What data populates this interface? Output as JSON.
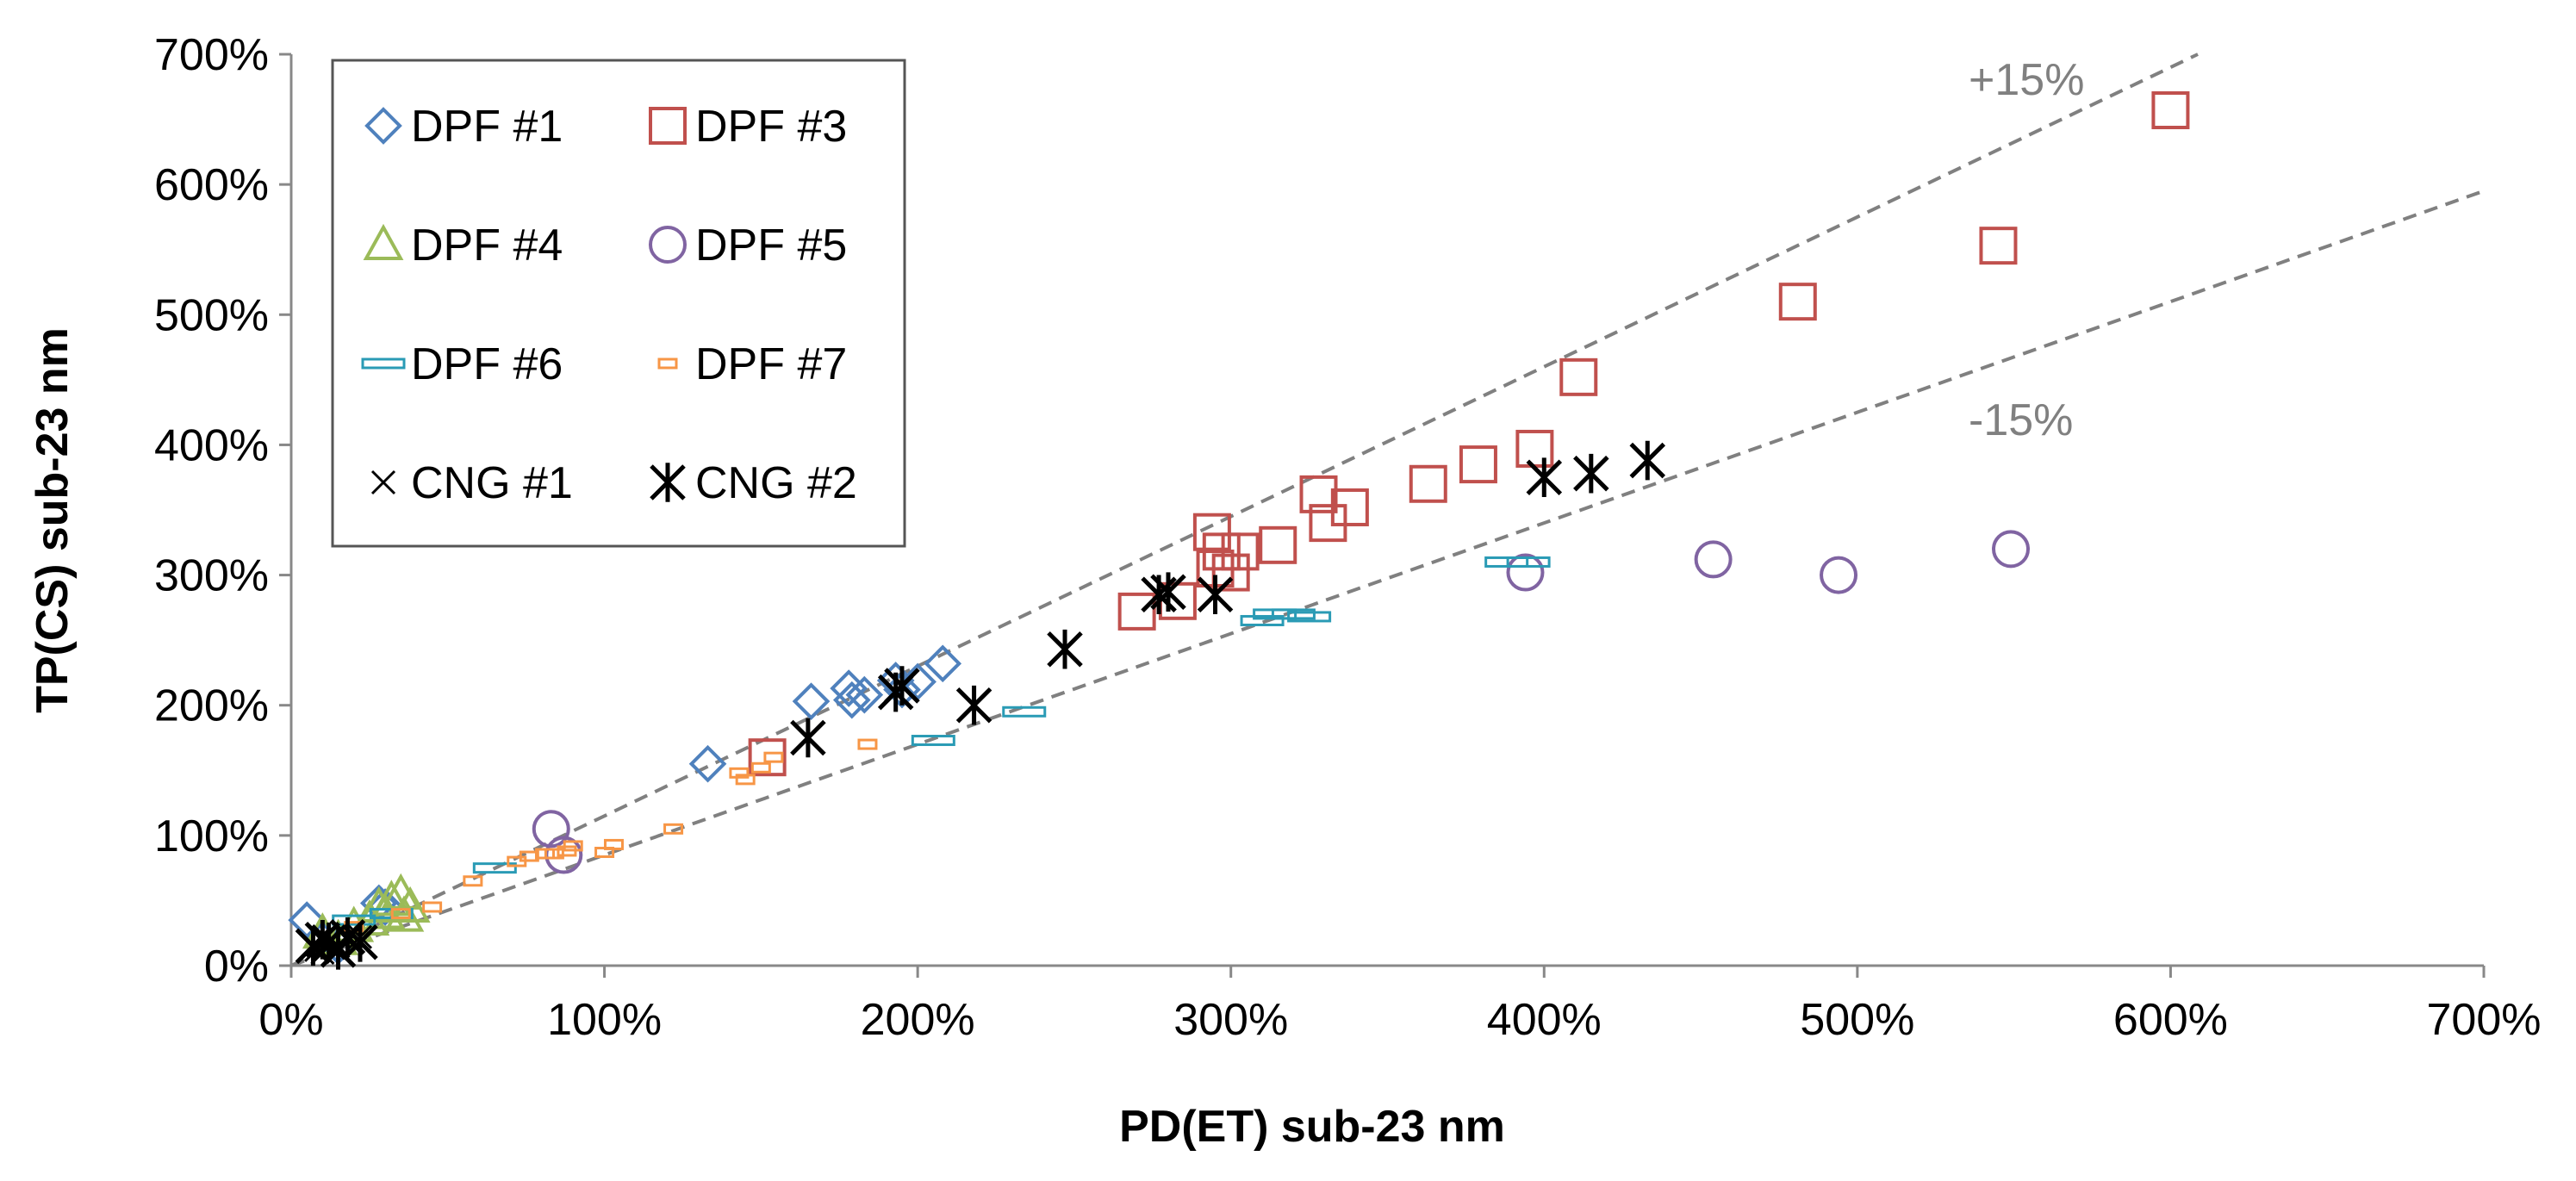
{
  "chart_data": {
    "type": "scatter",
    "title": "",
    "xlabel": "PD(ET) sub-23 nm",
    "ylabel": "TP(CS) sub-23 nm",
    "xlim": [
      0,
      700
    ],
    "ylim": [
      0,
      700
    ],
    "x_ticks": [
      "0%",
      "100%",
      "200%",
      "300%",
      "400%",
      "500%",
      "600%",
      "700%"
    ],
    "y_ticks": [
      "0%",
      "100%",
      "200%",
      "300%",
      "400%",
      "500%",
      "600%",
      "700%"
    ],
    "grid": false,
    "legend_position": "top-left",
    "reference_lines": [
      {
        "label": "+15%",
        "slope": 1.15,
        "color": "#808080",
        "style": "dashed"
      },
      {
        "label": "-15%",
        "slope": 0.85,
        "color": "#808080",
        "style": "dashed"
      }
    ],
    "series": [
      {
        "name": "DPF #1",
        "marker": "diamond",
        "color": "#4F81BD",
        "points": [
          [
            5,
            35
          ],
          [
            10,
            20
          ],
          [
            15,
            15
          ],
          [
            28,
            48
          ],
          [
            30,
            45
          ],
          [
            133,
            155
          ],
          [
            166,
            203
          ],
          [
            178,
            213
          ],
          [
            179,
            204
          ],
          [
            183,
            208
          ],
          [
            193,
            219
          ],
          [
            195,
            212
          ],
          [
            200,
            218
          ],
          [
            208,
            232
          ]
        ]
      },
      {
        "name": "DPF #3",
        "marker": "square",
        "color": "#C0504D",
        "points": [
          [
            152,
            160
          ],
          [
            270,
            272
          ],
          [
            283,
            280
          ],
          [
            294,
            333
          ],
          [
            295,
            305
          ],
          [
            297,
            318
          ],
          [
            300,
            302
          ],
          [
            303,
            318
          ],
          [
            315,
            323
          ],
          [
            328,
            362
          ],
          [
            331,
            340
          ],
          [
            338,
            352
          ],
          [
            363,
            370
          ],
          [
            379,
            385
          ],
          [
            397,
            397
          ],
          [
            411,
            452
          ],
          [
            481,
            510
          ],
          [
            545,
            553
          ],
          [
            600,
            657
          ]
        ]
      },
      {
        "name": "DPF #4",
        "marker": "triangle",
        "color": "#9BBB59",
        "points": [
          [
            10,
            25
          ],
          [
            15,
            20
          ],
          [
            20,
            30
          ],
          [
            25,
            35
          ],
          [
            28,
            45
          ],
          [
            30,
            40
          ],
          [
            32,
            50
          ],
          [
            35,
            55
          ],
          [
            38,
            45
          ],
          [
            36,
            38
          ]
        ]
      },
      {
        "name": "DPF #5",
        "marker": "circle",
        "color": "#8064A2",
        "points": [
          [
            83,
            105
          ],
          [
            87,
            85
          ],
          [
            394,
            302
          ],
          [
            454,
            312
          ],
          [
            494,
            300
          ],
          [
            549,
            320
          ]
        ]
      },
      {
        "name": "DPF #6",
        "marker": "dash-rect",
        "color": "#2A9BB5",
        "points": [
          [
            20,
            35
          ],
          [
            32,
            40
          ],
          [
            65,
            75
          ],
          [
            205,
            173
          ],
          [
            234,
            195
          ],
          [
            310,
            265
          ],
          [
            314,
            270
          ],
          [
            320,
            270
          ],
          [
            325,
            268
          ],
          [
            388,
            310
          ],
          [
            395,
            310
          ]
        ]
      },
      {
        "name": "DPF #7",
        "marker": "small-rect",
        "color": "#F79646",
        "points": [
          [
            20,
            30
          ],
          [
            35,
            40
          ],
          [
            45,
            45
          ],
          [
            58,
            65
          ],
          [
            72,
            80
          ],
          [
            76,
            84
          ],
          [
            81,
            86
          ],
          [
            84,
            86
          ],
          [
            88,
            88
          ],
          [
            90,
            92
          ],
          [
            100,
            87
          ],
          [
            103,
            93
          ],
          [
            122,
            105
          ],
          [
            143,
            148
          ],
          [
            145,
            143
          ],
          [
            150,
            152
          ],
          [
            154,
            160
          ],
          [
            184,
            170
          ]
        ]
      },
      {
        "name": "CNG #1",
        "marker": "x",
        "color": "#000000",
        "points": [
          [
            8,
            12
          ],
          [
            10,
            10
          ],
          [
            12,
            18
          ],
          [
            15,
            15
          ],
          [
            18,
            20
          ],
          [
            22,
            22
          ]
        ]
      },
      {
        "name": "CNG #2",
        "marker": "asterisk",
        "color": "#000000",
        "points": [
          [
            7,
            15
          ],
          [
            10,
            20
          ],
          [
            12,
            18
          ],
          [
            15,
            12
          ],
          [
            18,
            22
          ],
          [
            22,
            18
          ],
          [
            165,
            175
          ],
          [
            193,
            210
          ],
          [
            195,
            215
          ],
          [
            218,
            200
          ],
          [
            247,
            243
          ],
          [
            277,
            285
          ],
          [
            280,
            287
          ],
          [
            295,
            285
          ],
          [
            400,
            375
          ],
          [
            415,
            378
          ],
          [
            433,
            388
          ]
        ]
      }
    ]
  }
}
